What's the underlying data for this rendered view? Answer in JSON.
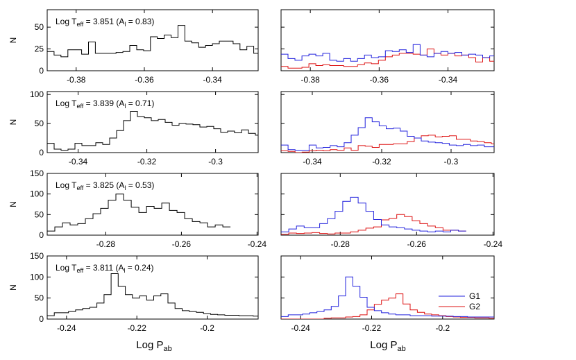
{
  "figure": {
    "xlabel_left": "Log P",
    "xlabel_left_sub": "ab",
    "xlabel_right": "Log P",
    "xlabel_right_sub": "ab",
    "ylabel": "N",
    "colors": {
      "all": "#000000",
      "G1": "#2222dd",
      "G2": "#dd1111"
    },
    "legend": {
      "placement": "inside lower-right of bottom-right panel",
      "entries": [
        "G1",
        "G2"
      ]
    }
  },
  "chart_data": [
    {
      "type": "histogram",
      "ann": {
        "pre": "Log T",
        "sub": "eff",
        "mid": " = 3.851 (A",
        "sub2": "l",
        "post": " = 0.83)"
      },
      "xlim": [
        -0.3885,
        -0.3266
      ],
      "xticks": [
        -0.38,
        -0.36,
        -0.34
      ],
      "xticklabels": [
        "-0.38",
        "-0.36",
        "-0.34"
      ],
      "ylim": [
        0,
        70
      ],
      "yticks": [
        0,
        25,
        50
      ],
      "yticklabels": [
        "0",
        "25",
        "50"
      ],
      "bin_start": -0.3885,
      "bin_width": 0.00202,
      "all": [
        22,
        18,
        16,
        24,
        24,
        19,
        33,
        20,
        20,
        20,
        21,
        22,
        29,
        24,
        23,
        39,
        37,
        41,
        38,
        52,
        34,
        32,
        27,
        29,
        31,
        34,
        34,
        31,
        24,
        28,
        20,
        18,
        20,
        17,
        20,
        19,
        22,
        18,
        19,
        17
      ],
      "g1": [
        19,
        14,
        12,
        17,
        19,
        17,
        20,
        12,
        11,
        14,
        11,
        14,
        18,
        15,
        16,
        23,
        22,
        24,
        21,
        30,
        18,
        16,
        20,
        22,
        20,
        21,
        18,
        19,
        18,
        15,
        17,
        16,
        17,
        15,
        15,
        17,
        14,
        12,
        15,
        13
      ],
      "g2": [
        5,
        3,
        3,
        4,
        8,
        6,
        7,
        6,
        6,
        5,
        5,
        7,
        9,
        8,
        12,
        16,
        18,
        20,
        20,
        19,
        18,
        25,
        20,
        18,
        20,
        17,
        18,
        15,
        10,
        15,
        11,
        10,
        9,
        8,
        6,
        7,
        9,
        7,
        9,
        11
      ]
    },
    {
      "type": "histogram",
      "ann": {
        "pre": "Log T",
        "sub": "eff",
        "mid": " = 3.839 (A",
        "sub2": "l",
        "post": " = 0.71)"
      },
      "xlim": [
        -0.349,
        -0.2876
      ],
      "xticks": [
        -0.34,
        -0.32,
        -0.3
      ],
      "xticklabels": [
        "-0.34",
        "-0.32",
        "-0.3"
      ],
      "ylim": [
        0,
        105
      ],
      "yticks": [
        0,
        50,
        100
      ],
      "yticklabels": [
        "0",
        "50",
        "100"
      ],
      "bin_start": -0.349,
      "bin_width": 0.00202,
      "all": [
        16,
        6,
        4,
        6,
        16,
        12,
        12,
        17,
        14,
        25,
        38,
        55,
        71,
        62,
        60,
        55,
        57,
        52,
        47,
        50,
        49,
        48,
        44,
        45,
        41,
        35,
        37,
        34,
        39,
        33,
        30,
        28,
        24,
        20,
        28
      ],
      "g1": [
        13,
        5,
        4,
        4,
        13,
        8,
        9,
        12,
        10,
        17,
        30,
        43,
        60,
        53,
        46,
        41,
        42,
        37,
        28,
        25,
        20,
        18,
        17,
        16,
        13,
        12,
        14,
        12,
        13,
        10,
        10,
        11,
        12,
        10,
        15
      ],
      "g2": [
        3,
        2,
        0,
        1,
        3,
        4,
        3,
        5,
        4,
        8,
        4,
        12,
        11,
        9,
        14,
        14,
        15,
        15,
        19,
        25,
        29,
        30,
        27,
        28,
        29,
        23,
        23,
        20,
        19,
        17,
        15,
        15,
        12,
        10,
        13
      ]
    },
    {
      "type": "histogram",
      "ann": {
        "pre": "Log T",
        "sub": "eff",
        "mid": " = 3.825 (A",
        "sub2": "l",
        "post": " = 0.53)"
      },
      "xlim": [
        -0.2955,
        -0.2397
      ],
      "xticks": [
        -0.28,
        -0.26,
        -0.24
      ],
      "xticklabels": [
        "-0.28",
        "-0.26",
        "-0.24"
      ],
      "ylim": [
        0,
        150
      ],
      "yticks": [
        0,
        50,
        100,
        150
      ],
      "yticklabels": [
        "0",
        "50",
        "100",
        "150"
      ],
      "bin_start": -0.2955,
      "bin_width": 0.00202,
      "all": [
        10,
        20,
        30,
        25,
        28,
        40,
        52,
        65,
        85,
        100,
        85,
        68,
        55,
        70,
        65,
        78,
        60,
        55,
        40,
        33,
        30,
        20,
        25,
        20
      ],
      "g1": [
        8,
        15,
        22,
        18,
        18,
        28,
        40,
        58,
        82,
        92,
        78,
        58,
        38,
        25,
        20,
        18,
        15,
        12,
        10,
        8,
        10,
        8,
        12,
        10
      ],
      "g2": [
        2,
        5,
        4,
        5,
        6,
        4,
        3,
        5,
        5,
        8,
        12,
        17,
        20,
        37,
        41,
        50,
        45,
        35,
        28,
        22,
        18,
        12,
        12,
        10
      ]
    },
    {
      "type": "histogram",
      "ann": {
        "pre": "Log T",
        "sub": "eff",
        "mid": " = 3.811 (A",
        "sub2": "l",
        "post": " = 0.24)"
      },
      "xlim": [
        -0.2455,
        -0.1855
      ],
      "xticks": [
        -0.24,
        -0.22,
        -0.2
      ],
      "xticklabels": [
        "-0.24",
        "-0.22",
        "-0.2"
      ],
      "ylim": [
        0,
        150
      ],
      "yticks": [
        0,
        50,
        100,
        150
      ],
      "yticklabels": [
        "0",
        "50",
        "100",
        "150"
      ],
      "bin_start": -0.2455,
      "bin_width": 0.00202,
      "all": [
        8,
        15,
        15,
        18,
        22,
        25,
        28,
        38,
        58,
        108,
        78,
        58,
        50,
        55,
        45,
        55,
        60,
        38,
        25,
        20,
        18,
        16,
        13,
        11,
        10,
        9,
        9,
        8,
        8,
        7
      ],
      "g1": [
        6,
        10,
        10,
        12,
        15,
        18,
        22,
        30,
        55,
        100,
        78,
        52,
        28,
        20,
        15,
        12,
        10,
        10,
        8,
        8,
        8,
        7,
        7,
        7,
        6,
        6,
        5,
        5,
        5,
        5
      ],
      "g2": [
        0,
        0,
        0,
        0,
        0,
        0,
        2,
        3,
        3,
        5,
        6,
        10,
        22,
        35,
        45,
        50,
        60,
        36,
        22,
        16,
        12,
        10,
        8,
        6,
        5,
        4,
        4,
        3,
        3,
        2
      ]
    }
  ]
}
